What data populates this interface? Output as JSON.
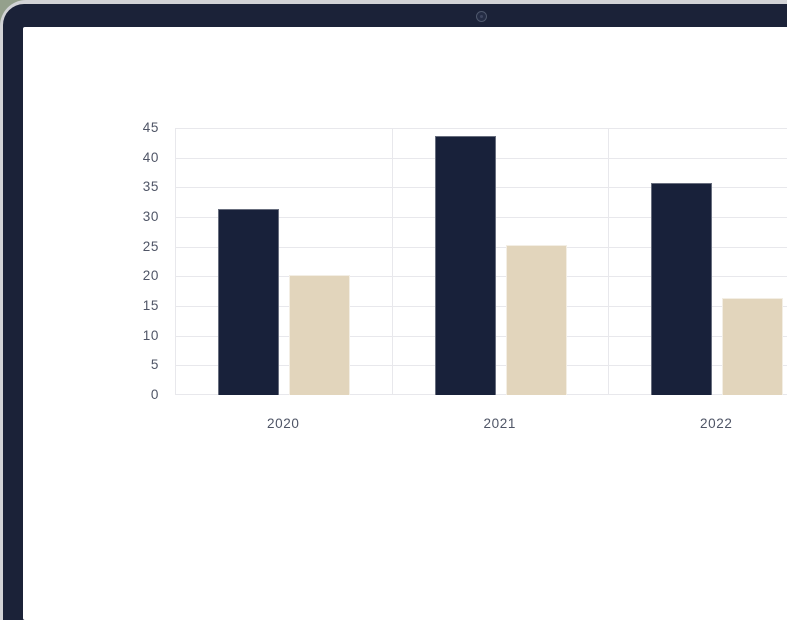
{
  "device": {
    "type": "laptop-mockup",
    "camera_icon": "webcam-dot"
  },
  "colors": {
    "page_background": "#94a08c",
    "device_edge": "#d2d3d6",
    "bezel": "#1b2238",
    "screen": "#ffffff",
    "grid_line": "#e8e8ec",
    "axis_label": "#4f5566",
    "series_dark": "#18213a",
    "series_beige": "#e2d5bc"
  },
  "chart_data": {
    "type": "bar",
    "title": "",
    "xlabel": "",
    "ylabel": "",
    "categories": [
      "2020",
      "2021",
      "2022"
    ],
    "series": [
      {
        "name": "dark-navy",
        "color": "#18213a",
        "values": [
          31.3,
          43.7,
          35.8
        ]
      },
      {
        "name": "beige",
        "color": "#e2d5bc",
        "values": [
          20.2,
          25.3,
          16.4
        ]
      }
    ],
    "ylim": [
      0,
      45
    ],
    "yticks": [
      0,
      5,
      10,
      15,
      20,
      25,
      30,
      35,
      40,
      45
    ],
    "grid": true,
    "legend": "none"
  }
}
